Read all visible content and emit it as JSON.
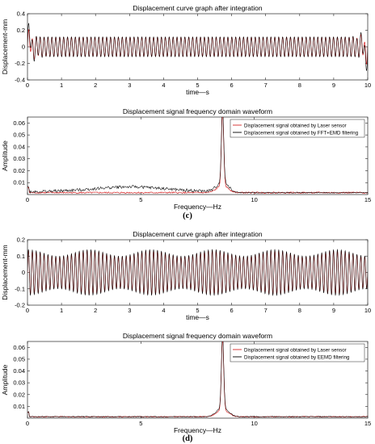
{
  "panel_labels": [
    "(c)",
    "(d)"
  ],
  "chart_data": [
    {
      "type": "line",
      "title": "Displacement curve graph after integration",
      "xlabel": "time—s",
      "ylabel": "Displacement-mm",
      "xlim": [
        0,
        10
      ],
      "ylim": [
        -0.4,
        0.4
      ],
      "xticks": [
        "0",
        "1",
        "2",
        "3",
        "4",
        "5",
        "6",
        "7",
        "8",
        "9",
        "10"
      ],
      "yticks": [
        "-0.4",
        "-0.2",
        "0",
        "0.2",
        "0.4"
      ],
      "grid": false,
      "legend": null,
      "signal": {
        "frequency_hz": 8.7,
        "amplitude": 0.12,
        "edge_spike_start": 0.3,
        "edge_spike_end": 0.38
      },
      "series": [
        {
          "color": "#d62728",
          "values_desc": "sinusoid"
        },
        {
          "color": "#000000",
          "values_desc": "sinusoid"
        }
      ]
    },
    {
      "type": "line",
      "title": "Displacement signal frequency domain waveform",
      "xlabel": "Frequency—Hz",
      "ylabel": "Amplitude",
      "xlim": [
        0,
        15
      ],
      "ylim": [
        0,
        0.065
      ],
      "xticks": [
        "0",
        "5",
        "10",
        "15"
      ],
      "yticks": [
        "0.01",
        "0.02",
        "0.03",
        "0.04",
        "0.05",
        "0.06"
      ],
      "grid": false,
      "legend_position": "top-right",
      "peak": {
        "x": 8.6,
        "y_red": 0.063,
        "y_black": 0.065
      },
      "series": [
        {
          "name": "Displacement signal obtained by Laser sensor",
          "color": "#d62728"
        },
        {
          "name": "Displacement signal obtained by FFT+EMD filtering",
          "color": "#000000"
        }
      ]
    },
    {
      "type": "line",
      "title": "Displacement curve graph after integration",
      "xlabel": "time—s",
      "ylabel": "Displacement-mm",
      "xlim": [
        0,
        10
      ],
      "ylim": [
        -0.2,
        0.2
      ],
      "xticks": [
        "0",
        "1",
        "2",
        "3",
        "4",
        "5",
        "6",
        "7",
        "8",
        "9",
        "10"
      ],
      "yticks": [
        "-0.2",
        "-0.1",
        "0",
        "0.1",
        "0.2"
      ],
      "grid": false,
      "legend": null,
      "signal": {
        "frequency_hz": 8.7,
        "amplitude": 0.12,
        "beat_modulation": 0.02
      },
      "series": [
        {
          "color": "#d62728"
        },
        {
          "color": "#000000"
        }
      ]
    },
    {
      "type": "line",
      "title": "Displacement signal frequency domain waveform",
      "xlabel": "Frequency—Hz",
      "ylabel": "Amplitude",
      "xlim": [
        0,
        15
      ],
      "ylim": [
        0,
        0.065
      ],
      "xticks": [
        "0",
        "5",
        "10",
        "15"
      ],
      "yticks": [
        "0.01",
        "0.02",
        "0.03",
        "0.04",
        "0.05",
        "0.06"
      ],
      "grid": false,
      "legend_position": "top-right",
      "peak": {
        "x": 8.6,
        "y_red": 0.062,
        "y_black": 0.063
      },
      "series": [
        {
          "name": "Displacement signal obtained by Laser sensor",
          "color": "#d62728"
        },
        {
          "name": "Displacement signal obtained by EEMD filtering",
          "color": "#000000"
        }
      ]
    }
  ]
}
